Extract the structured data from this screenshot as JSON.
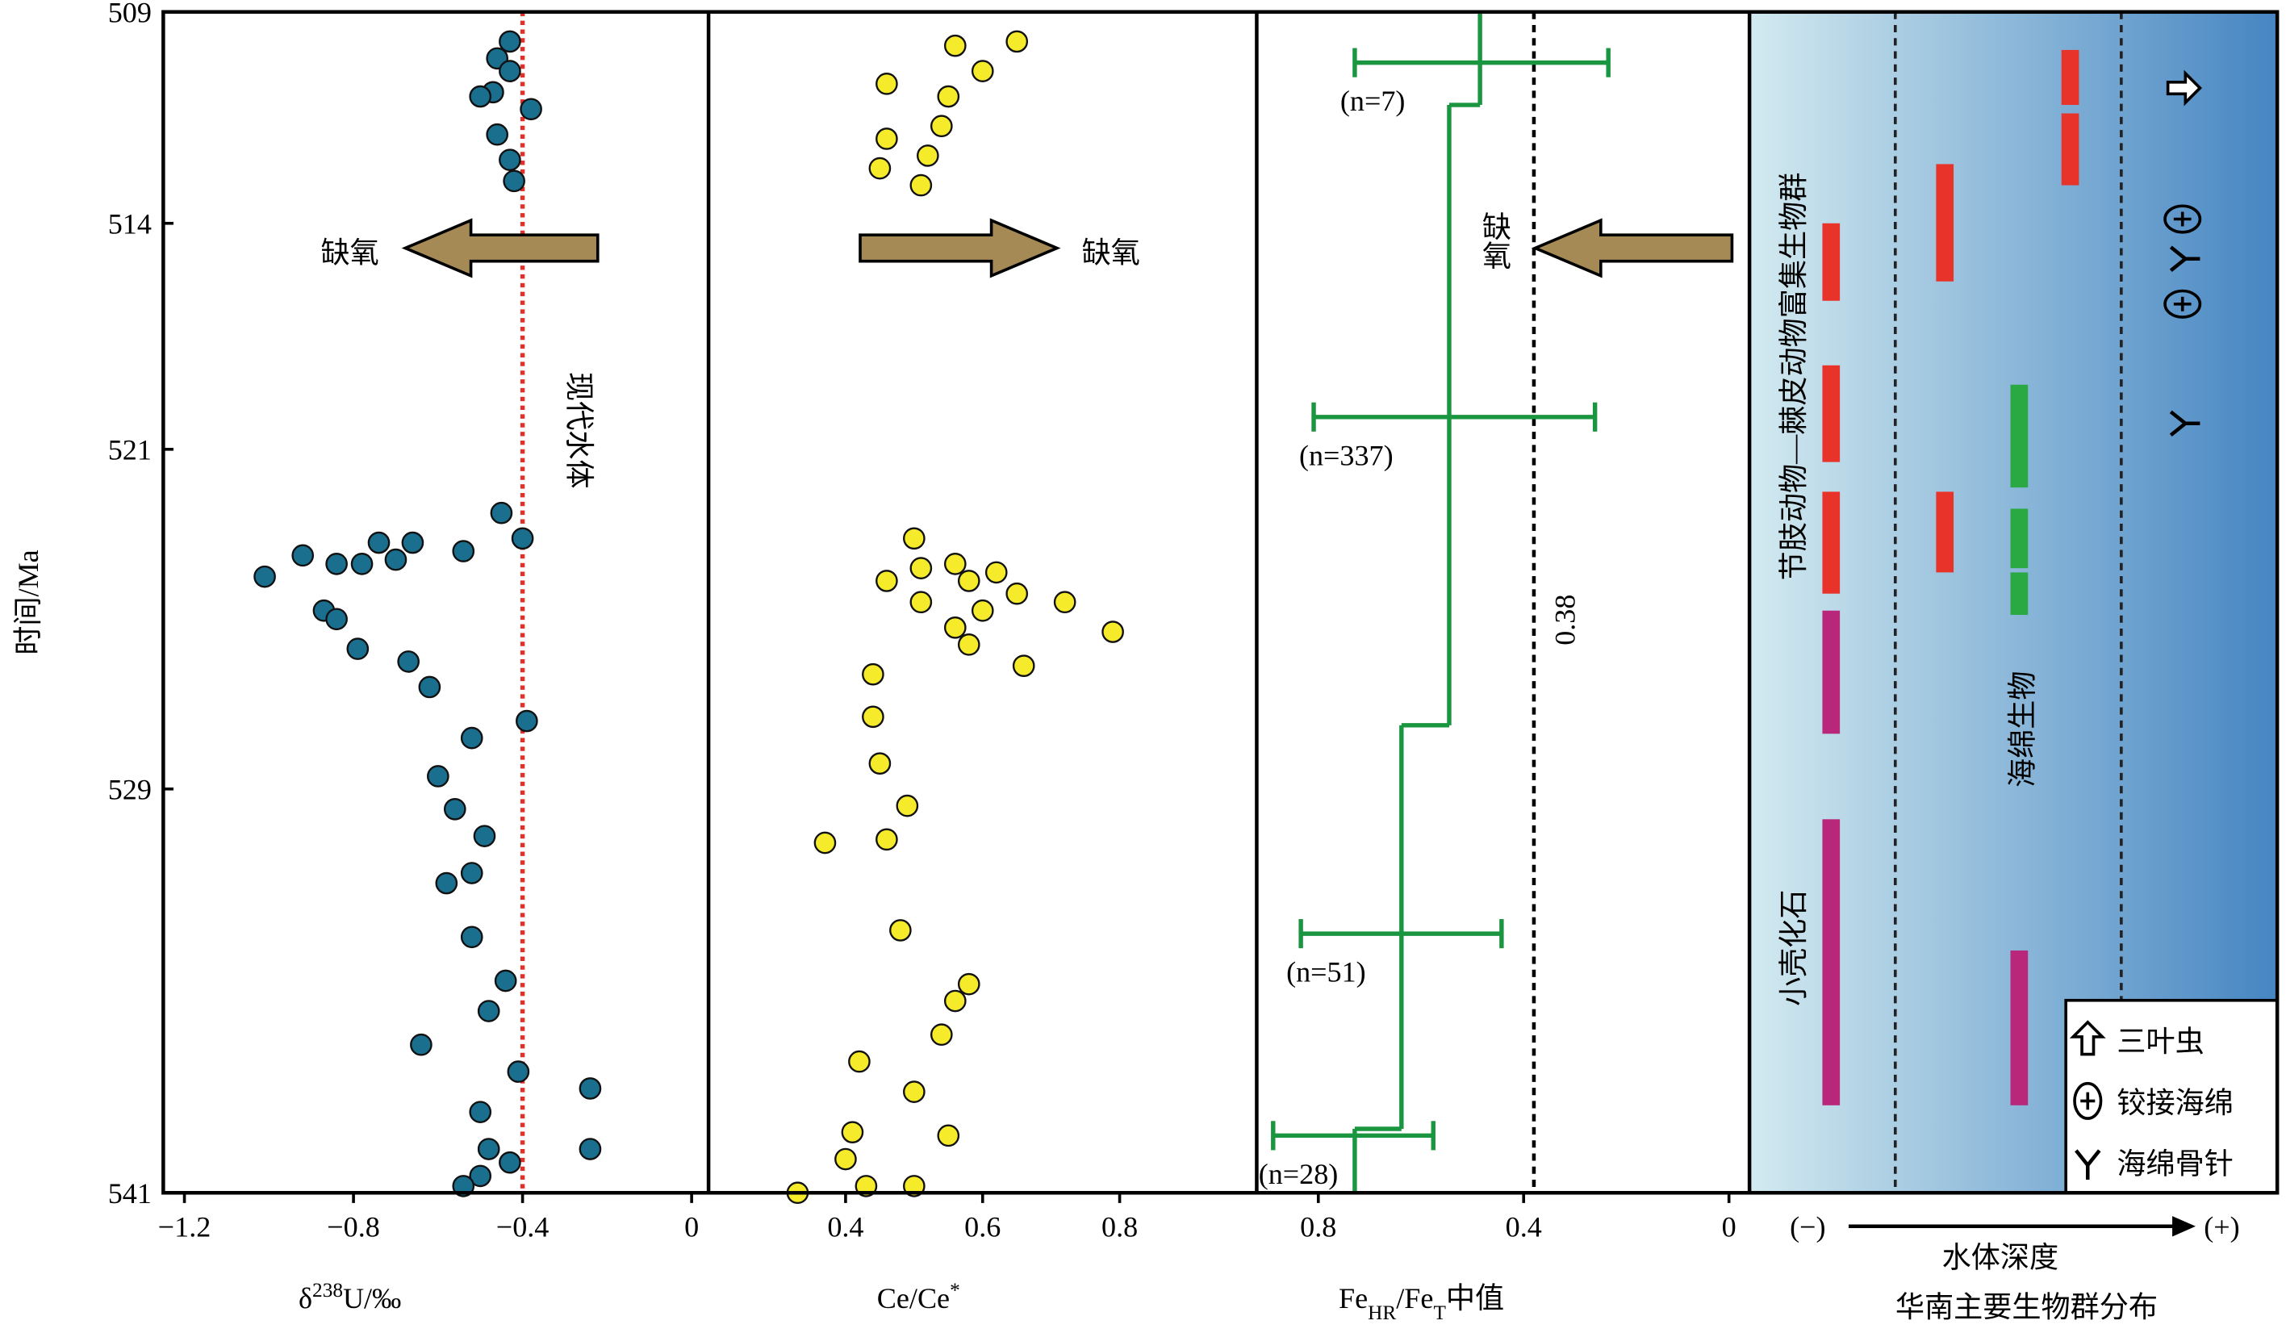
{
  "chart_data": [
    {
      "type": "scatter",
      "ylabel": "时间/Ma",
      "ylim": [
        509,
        541
      ],
      "yticks": [
        509,
        514,
        521,
        529,
        541
      ],
      "xlim": [
        -1.25,
        0.04
      ],
      "xticks": [
        {
          "value": -1.2,
          "label": "−1.2"
        },
        {
          "value": -0.8,
          "label": "−0.8"
        },
        {
          "value": -0.4,
          "label": "−0.4"
        },
        0
      ],
      "xlabel": [
        {
          "text": "δ"
        },
        {
          "text": "238",
          "script": "sup"
        },
        {
          "text": "U/‰"
        }
      ],
      "series": [
        {
          "color": "#1a6e8e",
          "x": [
            -0.43,
            -0.46,
            -0.43,
            -0.47,
            -0.5,
            -0.38,
            -0.46,
            -0.43,
            -0.42,
            -0.45,
            -0.4,
            -1.01,
            -0.92,
            -0.84,
            -0.78,
            -0.74,
            -0.7,
            -0.66,
            -0.54,
            -0.87,
            -0.84,
            -0.79,
            -0.67,
            -0.62,
            -0.39,
            -0.52,
            -0.6,
            -0.56,
            -0.49,
            -0.52,
            -0.58,
            -0.52,
            -0.44,
            -0.48,
            -0.64,
            -0.41,
            -0.24,
            -0.5,
            -0.48,
            -0.43,
            -0.24,
            -0.5,
            -0.54
          ],
          "y": [
            509.7,
            510.1,
            510.4,
            510.9,
            511.0,
            511.3,
            511.9,
            512.5,
            513.0,
            522.5,
            523.1,
            524.0,
            523.5,
            523.7,
            523.7,
            523.2,
            523.6,
            523.2,
            523.4,
            524.8,
            525.0,
            525.7,
            526.0,
            526.6,
            527.4,
            527.8,
            528.7,
            529.6,
            530.4,
            531.5,
            531.8,
            533.4,
            534.7,
            535.6,
            536.6,
            537.4,
            537.9,
            538.6,
            539.7,
            540.1,
            539.7,
            540.5,
            540.8
          ]
        }
      ],
      "reference_line": {
        "value": -0.4,
        "label": "现代水体",
        "color": "#e0302a"
      },
      "annotation": {
        "text": "缺氧",
        "direction": "left"
      }
    },
    {
      "type": "scatter",
      "xlim": [
        0.2,
        1.0
      ],
      "xticks": [
        0.4,
        0.6,
        0.8
      ],
      "xlabel": [
        {
          "text": "Ce/Ce"
        },
        {
          "text": "*",
          "script": "sup"
        }
      ],
      "series": [
        {
          "color": "#f5eb2a",
          "x": [
            0.56,
            0.65,
            0.46,
            0.6,
            0.55,
            0.54,
            0.46,
            0.52,
            0.45,
            0.51,
            0.5,
            0.46,
            0.51,
            0.56,
            0.62,
            0.58,
            0.51,
            0.6,
            0.65,
            0.72,
            0.79,
            0.56,
            0.58,
            0.66,
            0.44,
            0.44,
            0.45,
            0.49,
            0.37,
            0.46,
            0.48,
            0.58,
            0.56,
            0.54,
            0.42,
            0.5,
            0.41,
            0.55,
            0.4,
            0.43,
            0.33,
            0.5
          ],
          "y": [
            509.8,
            509.7,
            510.7,
            510.4,
            511.0,
            511.7,
            512.0,
            512.4,
            512.7,
            513.1,
            523.1,
            524.1,
            523.8,
            523.7,
            523.9,
            524.1,
            524.6,
            524.8,
            524.4,
            524.6,
            525.3,
            525.2,
            525.6,
            526.1,
            526.3,
            527.3,
            528.4,
            529.5,
            530.6,
            530.5,
            533.2,
            534.8,
            535.3,
            536.3,
            537.1,
            538.0,
            539.2,
            539.3,
            540.0,
            540.8,
            541.0,
            540.8
          ]
        }
      ],
      "annotation": {
        "text": "缺氧",
        "direction": "right"
      }
    },
    {
      "type": "step",
      "xlim": [
        0.92,
        -0.04
      ],
      "xticks": [
        0.8,
        0.4,
        0
      ],
      "xlabel": [
        {
          "text": "Fe"
        },
        {
          "text": "HR",
          "script": "sub"
        },
        {
          "text": "/Fe"
        },
        {
          "text": "T",
          "script": "sub"
        },
        {
          "text": "中值"
        }
      ],
      "color": "#1a9641",
      "steps": {
        "values": [
          0.485,
          0.545,
          0.638,
          0.729
        ],
        "bounds": [
          509,
          511.2,
          527.5,
          539.1,
          541
        ]
      },
      "error_bars": [
        {
          "y": 510.2,
          "low": 0.235,
          "high": 0.729,
          "label": "(n=7)"
        },
        {
          "y": 520.0,
          "low": 0.261,
          "high": 0.809,
          "label": "(n=337)"
        },
        {
          "y": 533.3,
          "low": 0.443,
          "high": 0.834,
          "label": "(n=51)"
        },
        {
          "y": 539.3,
          "low": 0.576,
          "high": 0.888,
          "label": "(n=28)"
        }
      ],
      "threshold": {
        "value": 0.38,
        "label": "0.38"
      },
      "annotation": {
        "text": "缺氧",
        "direction": "left"
      }
    },
    {
      "type": "range",
      "title": "华南主要生物群分布",
      "axis_label": "水体深度",
      "axis_ends": [
        "(−)",
        "(+)"
      ],
      "columns": [
        {
          "bars": [
            [
              514.0,
              516.4,
              "#e8332a"
            ],
            [
              518.4,
              521.3,
              "#e8332a"
            ],
            [
              522.0,
              524.4,
              "#e8332a"
            ],
            [
              524.8,
              527.7,
              "#b8277a"
            ],
            [
              529.9,
              538.4,
              "#b8277a"
            ]
          ]
        },
        {
          "bars": [
            [
              512.6,
              515.8,
              "#e8332a"
            ],
            [
              522.0,
              523.9,
              "#e8332a"
            ]
          ]
        },
        {
          "bars": [
            [
              519.0,
              521.9,
              "#2aa842"
            ],
            [
              522.4,
              523.8,
              "#2aa842"
            ],
            [
              523.9,
              524.9,
              "#2aa842"
            ],
            [
              533.8,
              538.4,
              "#b8277a"
            ]
          ]
        },
        {
          "bars": [
            [
              509.9,
              511.2,
              "#e8332a"
            ],
            [
              511.4,
              513.1,
              "#e8332a"
            ]
          ]
        }
      ],
      "group_labels": [
        {
          "text": "节肢动物—棘皮动物富集生物群",
          "color": "#e8332a"
        },
        {
          "text": "小壳化石",
          "color": "#b8277a"
        },
        {
          "text": "海绵生物",
          "color": "#2aa842"
        }
      ],
      "legend": [
        "三叶虫",
        "铰接海绵",
        "海绵骨针"
      ],
      "symbols": [
        {
          "taxon": 0,
          "y": 510.8
        },
        {
          "taxon": 1,
          "y": 513.9
        },
        {
          "taxon": 2,
          "y": 515.1
        },
        {
          "taxon": 1,
          "y": 516.5
        },
        {
          "taxon": 2,
          "y": 520.2
        }
      ]
    }
  ]
}
